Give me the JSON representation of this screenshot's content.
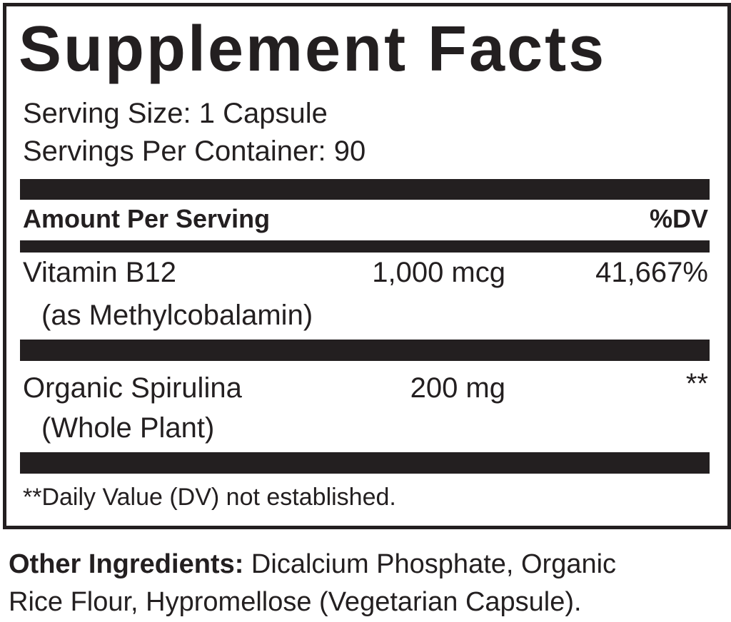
{
  "title": "Supplement Facts",
  "serving_size": "Serving Size: 1 Capsule",
  "servings_per_container": "Servings Per Container: 90",
  "header": {
    "amount": "Amount Per Serving",
    "dv": "%DV"
  },
  "rows": [
    {
      "name": "Vitamin B12",
      "sub": "(as Methylcobalamin)",
      "amount": "1,000 mcg",
      "dv": "41,667%"
    },
    {
      "name": "Organic Spirulina",
      "sub": "(Whole Plant)",
      "amount": "200 mg",
      "dv": "**"
    }
  ],
  "footnote": "**Daily Value (DV) not established.",
  "other": {
    "label": "Other Ingredients:",
    "text": " Dicalcium Phosphate, Organic",
    "line2": "Rice Flour, Hypromellose (Vegetarian Capsule)."
  }
}
